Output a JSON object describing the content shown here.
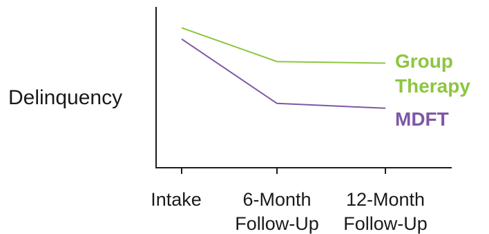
{
  "chart_data": {
    "type": "line",
    "ylabel": "Delinquency",
    "categories": [
      [
        "Intake"
      ],
      [
        "6-Month",
        "Follow-Up"
      ],
      [
        "12-Month",
        "Follow-Up"
      ]
    ],
    "ylim": [
      0,
      100
    ],
    "series": [
      {
        "name_lines": [
          "Group",
          "Therapy"
        ],
        "values": [
          87,
          66,
          65
        ],
        "color": "#8cc63f"
      },
      {
        "name_lines": [
          "MDFT"
        ],
        "values": [
          80,
          40,
          37
        ],
        "color": "#7e57a5"
      }
    ],
    "grid": false,
    "legend": "series labels at right end of each line"
  }
}
